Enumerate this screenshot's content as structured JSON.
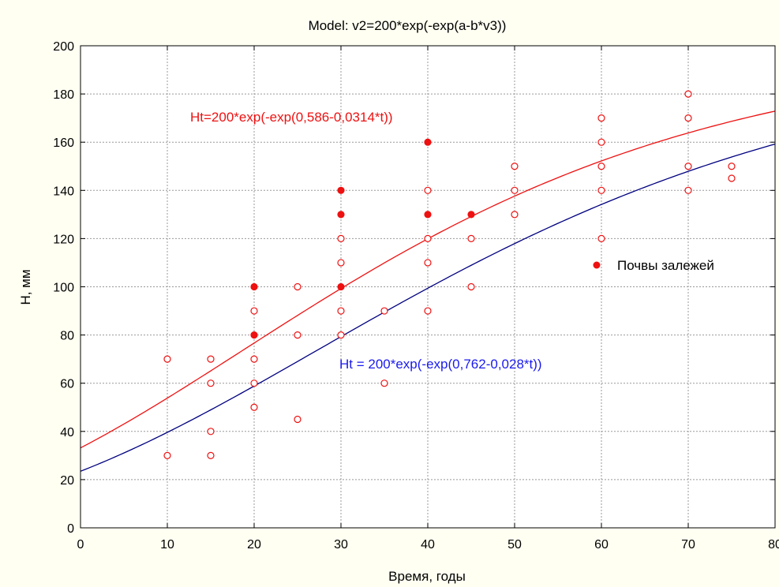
{
  "chart_data": {
    "type": "scatter",
    "title": "Model: v2=200*exp(-exp(a-b*v3))",
    "xlabel": "Время, годы",
    "ylabel": "Н, мм",
    "xlim": [
      0,
      80
    ],
    "ylim": [
      0,
      200
    ],
    "xticks": [
      "0",
      "10",
      "20",
      "30",
      "40",
      "50",
      "60",
      "70",
      "80"
    ],
    "yticks": [
      "0",
      "20",
      "40",
      "60",
      "80",
      "100",
      "120",
      "140",
      "160",
      "180",
      "200"
    ],
    "grid": true,
    "colors": {
      "background": "#fffff2",
      "plot_bg": "#ffffff",
      "marker": "#ee1111",
      "curve_red": "#ee1111",
      "curve_blue": "#000080",
      "grid": "#999999"
    },
    "series": [
      {
        "name": "Почвы залежей",
        "marker": "filled",
        "points": [
          [
            20,
            100
          ],
          [
            20,
            80
          ],
          [
            30,
            140
          ],
          [
            30,
            130
          ],
          [
            30,
            100
          ],
          [
            40,
            160
          ],
          [
            40,
            130
          ],
          [
            45,
            130
          ]
        ]
      },
      {
        "marker": "hollow",
        "points": [
          [
            10,
            70
          ],
          [
            10,
            30
          ],
          [
            15,
            70
          ],
          [
            15,
            60
          ],
          [
            15,
            40
          ],
          [
            15,
            30
          ],
          [
            20,
            90
          ],
          [
            20,
            70
          ],
          [
            20,
            60
          ],
          [
            20,
            50
          ],
          [
            25,
            100
          ],
          [
            25,
            80
          ],
          [
            25,
            45
          ],
          [
            30,
            120
          ],
          [
            30,
            110
          ],
          [
            30,
            90
          ],
          [
            30,
            80
          ],
          [
            35,
            90
          ],
          [
            35,
            60
          ],
          [
            40,
            140
          ],
          [
            40,
            120
          ],
          [
            40,
            110
          ],
          [
            40,
            90
          ],
          [
            45,
            120
          ],
          [
            45,
            100
          ],
          [
            50,
            150
          ],
          [
            50,
            140
          ],
          [
            50,
            130
          ],
          [
            60,
            170
          ],
          [
            60,
            160
          ],
          [
            60,
            150
          ],
          [
            60,
            140
          ],
          [
            60,
            120
          ],
          [
            70,
            180
          ],
          [
            70,
            170
          ],
          [
            70,
            150
          ],
          [
            70,
            140
          ],
          [
            75,
            150
          ],
          [
            75,
            145
          ]
        ]
      }
    ],
    "curves": [
      {
        "label": "Ht=200*exp(-exp(0,586-0,0314*t))",
        "a": 0.586,
        "b": 0.0314,
        "color": "#ee1111"
      },
      {
        "label": "Ht = 200*exp(-exp(0,762-0,028*t))",
        "a": 0.762,
        "b": 0.028,
        "color": "#000080"
      }
    ],
    "legend": {
      "label": "Почвы залежей",
      "position": "right"
    }
  }
}
